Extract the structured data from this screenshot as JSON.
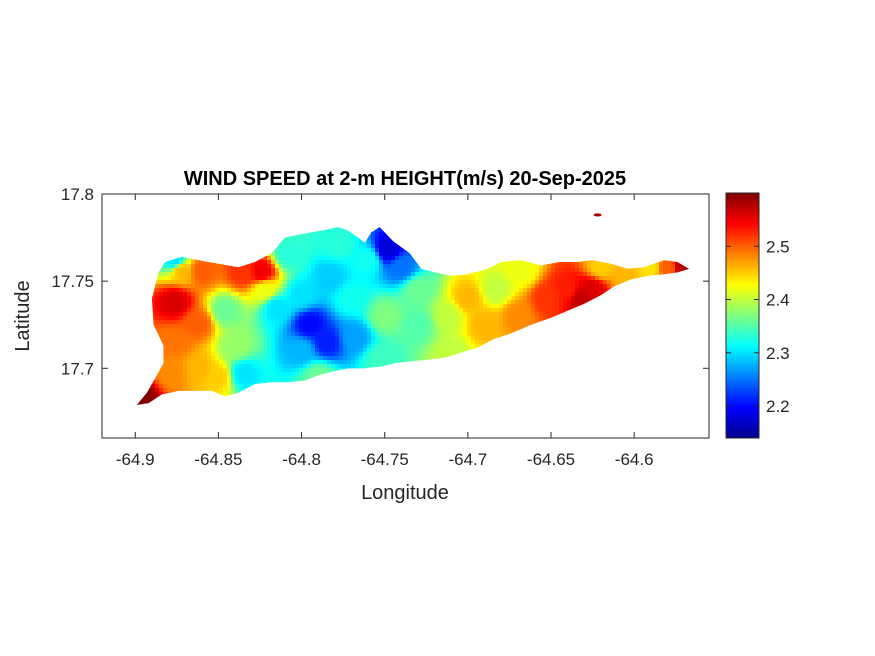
{
  "chart_data": {
    "type": "heatmap",
    "title": "WIND SPEED at 2-m HEIGHT(m/s) 20-Sep-2025",
    "xlabel": "Longitude",
    "ylabel": "Latitude",
    "xlim": [
      -64.92,
      -64.555
    ],
    "ylim": [
      17.66,
      17.8
    ],
    "xticks": [
      -64.9,
      -64.85,
      -64.8,
      -64.75,
      -64.7,
      -64.65,
      -64.6
    ],
    "xtick_labels": [
      "-64.9",
      "-64.85",
      "-64.8",
      "-64.75",
      "-64.7",
      "-64.65",
      "-64.6"
    ],
    "yticks": [
      17.7,
      17.75,
      17.8
    ],
    "ytick_labels": [
      "17.7",
      "17.75",
      "17.8"
    ],
    "colorbar": {
      "colormap": "jet",
      "clim": [
        2.14,
        2.6
      ],
      "ticks": [
        2.2,
        2.3,
        2.4,
        2.5
      ],
      "tick_labels": [
        "2.2",
        "2.3",
        "2.4",
        "2.5"
      ]
    },
    "outline": [
      [
        -64.899,
        17.679
      ],
      [
        -64.893,
        17.686
      ],
      [
        -64.887,
        17.696
      ],
      [
        -64.883,
        17.703
      ],
      [
        -64.883,
        17.713
      ],
      [
        -64.889,
        17.725
      ],
      [
        -64.89,
        17.74
      ],
      [
        -64.886,
        17.755
      ],
      [
        -64.882,
        17.761
      ],
      [
        -64.872,
        17.764
      ],
      [
        -64.862,
        17.762
      ],
      [
        -64.85,
        17.76
      ],
      [
        -64.838,
        17.758
      ],
      [
        -64.828,
        17.761
      ],
      [
        -64.818,
        17.766
      ],
      [
        -64.81,
        17.775
      ],
      [
        -64.8,
        17.777
      ],
      [
        -64.788,
        17.779
      ],
      [
        -64.778,
        17.781
      ],
      [
        -64.772,
        17.779
      ],
      [
        -64.766,
        17.775
      ],
      [
        -64.762,
        17.772
      ],
      [
        -64.758,
        17.778
      ],
      [
        -64.753,
        17.781
      ],
      [
        -64.745,
        17.773
      ],
      [
        -64.735,
        17.766
      ],
      [
        -64.728,
        17.757
      ],
      [
        -64.72,
        17.755
      ],
      [
        -64.71,
        17.753
      ],
      [
        -64.7,
        17.754
      ],
      [
        -64.688,
        17.757
      ],
      [
        -64.68,
        17.761
      ],
      [
        -64.668,
        17.762
      ],
      [
        -64.656,
        17.759
      ],
      [
        -64.645,
        17.761
      ],
      [
        -64.635,
        17.761
      ],
      [
        -64.625,
        17.762
      ],
      [
        -64.614,
        17.76
      ],
      [
        -64.604,
        17.757
      ],
      [
        -64.594,
        17.758
      ],
      [
        -64.582,
        17.762
      ],
      [
        -64.574,
        17.761
      ],
      [
        -64.567,
        17.757
      ],
      [
        -64.574,
        17.755
      ],
      [
        -64.582,
        17.754
      ],
      [
        -64.592,
        17.753
      ],
      [
        -64.602,
        17.751
      ],
      [
        -64.612,
        17.747
      ],
      [
        -64.62,
        17.742
      ],
      [
        -64.63,
        17.737
      ],
      [
        -64.64,
        17.733
      ],
      [
        -64.65,
        17.729
      ],
      [
        -64.662,
        17.725
      ],
      [
        -64.674,
        17.72
      ],
      [
        -64.684,
        17.717
      ],
      [
        -64.694,
        17.712
      ],
      [
        -64.704,
        17.709
      ],
      [
        -64.714,
        17.706
      ],
      [
        -64.724,
        17.705
      ],
      [
        -64.734,
        17.704
      ],
      [
        -64.744,
        17.703
      ],
      [
        -64.752,
        17.701
      ],
      [
        -64.762,
        17.7
      ],
      [
        -64.772,
        17.7
      ],
      [
        -64.782,
        17.698
      ],
      [
        -64.79,
        17.696
      ],
      [
        -64.798,
        17.693
      ],
      [
        -64.808,
        17.692
      ],
      [
        -64.818,
        17.692
      ],
      [
        -64.828,
        17.691
      ],
      [
        -64.838,
        17.686
      ],
      [
        -64.846,
        17.684
      ],
      [
        -64.854,
        17.687
      ],
      [
        -64.864,
        17.687
      ],
      [
        -64.874,
        17.687
      ],
      [
        -64.884,
        17.685
      ],
      [
        -64.892,
        17.68
      ]
    ],
    "islet": [
      -64.622,
      17.788
    ],
    "samples": [
      [
        -64.897,
        17.682,
        2.6
      ],
      [
        -64.876,
        17.738,
        2.56
      ],
      [
        -64.862,
        17.726,
        2.5
      ],
      [
        -64.876,
        17.715,
        2.49
      ],
      [
        -64.878,
        17.698,
        2.48
      ],
      [
        -64.862,
        17.7,
        2.46
      ],
      [
        -64.872,
        17.756,
        2.46
      ],
      [
        -64.876,
        17.762,
        2.3
      ],
      [
        -64.86,
        17.756,
        2.5
      ],
      [
        -64.835,
        17.755,
        2.52
      ],
      [
        -64.824,
        17.755,
        2.55
      ],
      [
        -64.846,
        17.733,
        2.36
      ],
      [
        -64.84,
        17.712,
        2.38
      ],
      [
        -64.85,
        17.695,
        2.45
      ],
      [
        -64.835,
        17.697,
        2.3
      ],
      [
        -64.822,
        17.745,
        2.42
      ],
      [
        -64.815,
        17.735,
        2.3
      ],
      [
        -64.808,
        17.765,
        2.33
      ],
      [
        -64.795,
        17.725,
        2.2
      ],
      [
        -64.785,
        17.715,
        2.21
      ],
      [
        -64.8,
        17.742,
        2.3
      ],
      [
        -64.8,
        17.71,
        2.28
      ],
      [
        -64.79,
        17.695,
        2.36
      ],
      [
        -64.783,
        17.752,
        2.29
      ],
      [
        -64.778,
        17.772,
        2.33
      ],
      [
        -64.77,
        17.74,
        2.32
      ],
      [
        -64.768,
        17.718,
        2.27
      ],
      [
        -64.76,
        17.762,
        2.32
      ],
      [
        -64.748,
        17.768,
        2.18
      ],
      [
        -64.74,
        17.758,
        2.25
      ],
      [
        -64.73,
        17.745,
        2.36
      ],
      [
        -64.75,
        17.73,
        2.37
      ],
      [
        -64.73,
        17.725,
        2.35
      ],
      [
        -64.752,
        17.705,
        2.34
      ],
      [
        -64.712,
        17.73,
        2.4
      ],
      [
        -64.7,
        17.74,
        2.46
      ],
      [
        -64.71,
        17.708,
        2.4
      ],
      [
        -64.69,
        17.725,
        2.46
      ],
      [
        -64.683,
        17.745,
        2.4
      ],
      [
        -64.67,
        17.73,
        2.48
      ],
      [
        -64.668,
        17.756,
        2.42
      ],
      [
        -64.652,
        17.74,
        2.52
      ],
      [
        -64.64,
        17.745,
        2.53
      ],
      [
        -64.632,
        17.74,
        2.57
      ],
      [
        -64.625,
        17.745,
        2.56
      ],
      [
        -64.62,
        17.758,
        2.45
      ],
      [
        -64.605,
        17.752,
        2.46
      ],
      [
        -64.59,
        17.757,
        2.44
      ],
      [
        -64.58,
        17.757,
        2.5
      ],
      [
        -64.57,
        17.758,
        2.58
      ],
      [
        -64.622,
        17.788,
        2.58
      ]
    ]
  }
}
